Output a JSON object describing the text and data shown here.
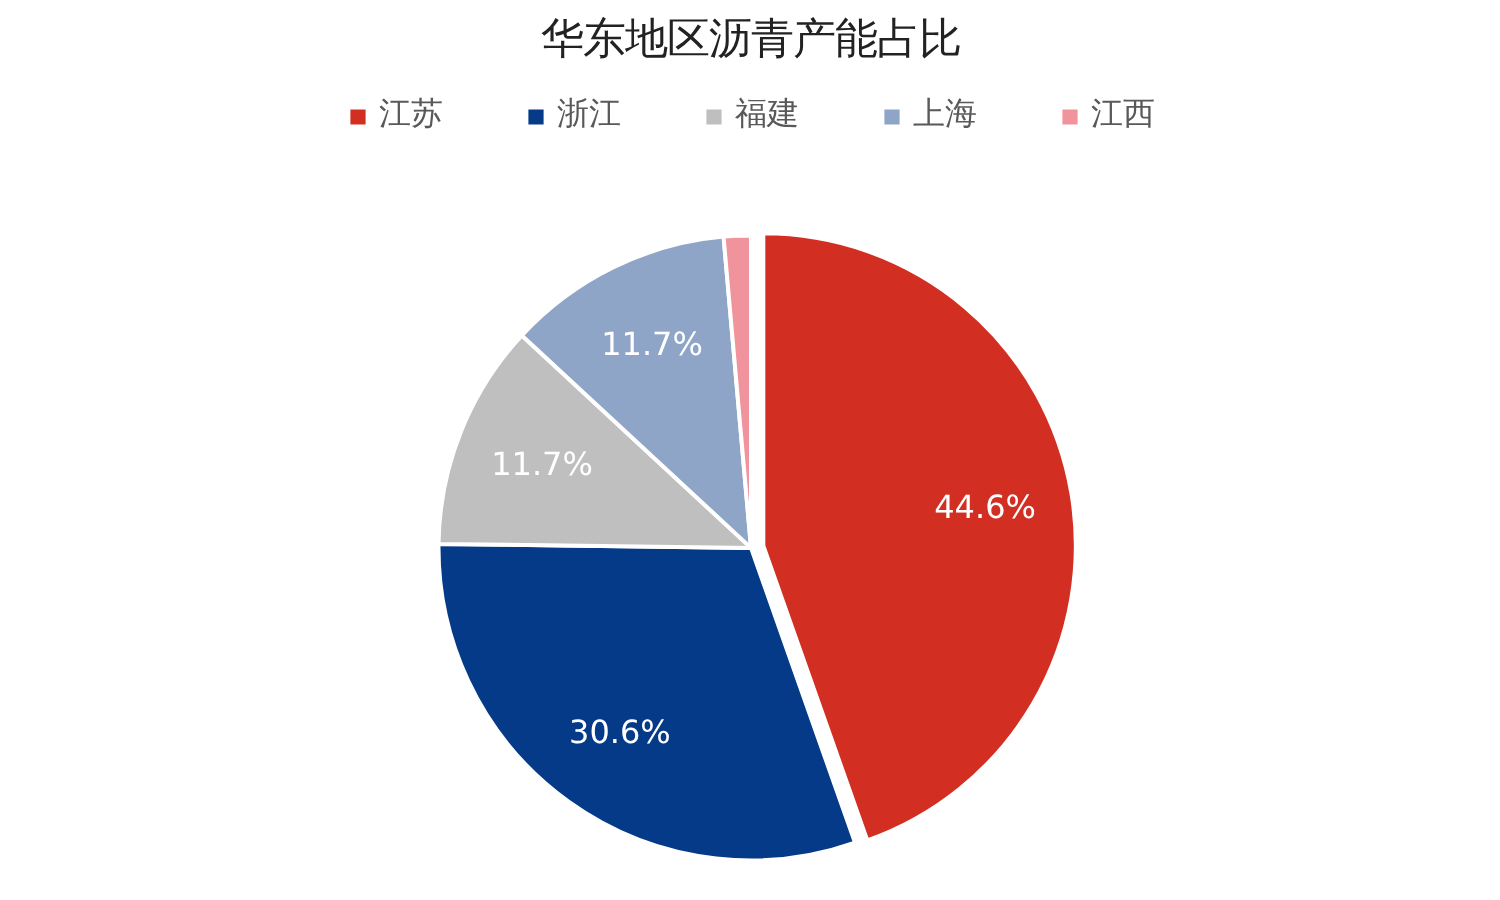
{
  "chart_data": {
    "type": "pie",
    "title": "华东地区沥青产能占比",
    "categories": [
      "江苏",
      "浙江",
      "福建",
      "上海",
      "江西"
    ],
    "values": [
      44.6,
      30.6,
      11.7,
      11.7,
      1.4
    ],
    "colors": [
      "#d22e22",
      "#043a87",
      "#bfbfbf",
      "#8ea5c8",
      "#f0939c"
    ],
    "value_labels": [
      "44.6%",
      "30.6%",
      "11.7%",
      "11.7%",
      null
    ],
    "legend": "top"
  }
}
